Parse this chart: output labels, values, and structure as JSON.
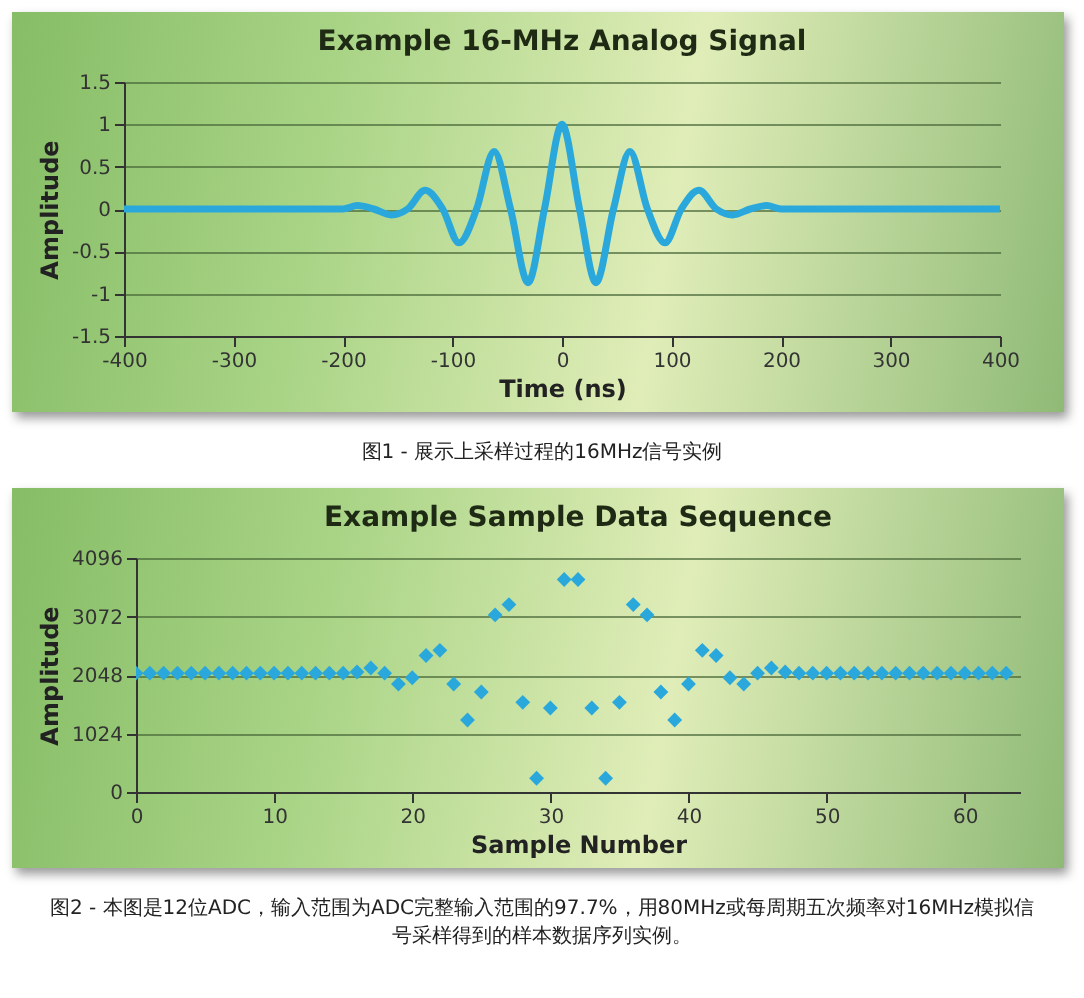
{
  "chart_data": [
    {
      "type": "line",
      "title": "Example 16-MHz Analog Signal",
      "xlabel": "Time (ns)",
      "ylabel": "Amplitude",
      "annotations": [
        "图1 - 展示上采样过程的16MHz信号实例"
      ],
      "series": [
        {
          "color": "#2aa8dc",
          "x": [
            -400,
            -300,
            -200,
            -187,
            -172,
            -156,
            -141,
            -125,
            -109,
            -94,
            -78,
            -62,
            -47,
            -31,
            -16,
            0,
            16,
            31,
            47,
            62,
            78,
            94,
            109,
            125,
            141,
            156,
            172,
            187,
            200,
            300,
            400
          ],
          "values": [
            0,
            0,
            0,
            0.04,
            0,
            -0.07,
            0,
            0.22,
            0,
            -0.4,
            0,
            0.68,
            0,
            -0.87,
            0,
            1,
            0,
            -0.87,
            0,
            0.68,
            0,
            -0.4,
            0,
            0.22,
            0,
            -0.07,
            0,
            0.04,
            0,
            0,
            0
          ]
        }
      ],
      "xlim": [
        -400,
        400
      ],
      "xticks": [
        -400,
        -300,
        -200,
        -100,
        0,
        100,
        200,
        300,
        400
      ],
      "ylim": [
        -1.5,
        1.5
      ],
      "yticks": [
        -1.5,
        -1,
        -0.5,
        0,
        0.5,
        1,
        1.5
      ],
      "grid": "y"
    },
    {
      "type": "scatter",
      "title": "Example Sample Data Sequence",
      "xlabel": "Sample Number",
      "ylabel": "Amplitude",
      "annotations": [
        "图2 - 本图是12位ADC，输入范围为ADC完整输入范围的97.7%，用80MHz或每周期五次频率对16MHz模拟信号采样得到的样本数据序列实例。"
      ],
      "series": [
        {
          "color": "#2aa8dc",
          "x": [
            0,
            1,
            2,
            3,
            4,
            5,
            6,
            7,
            8,
            9,
            10,
            11,
            12,
            13,
            14,
            15,
            16,
            17,
            18,
            19,
            20,
            21,
            22,
            23,
            24,
            25,
            26,
            27,
            28,
            29,
            30,
            31,
            32,
            33,
            34,
            35,
            36,
            37,
            38,
            39,
            40,
            41,
            42,
            43,
            44,
            45,
            46,
            47,
            48,
            49,
            50,
            51,
            52,
            53,
            54,
            55,
            56,
            57,
            58,
            59,
            60,
            61,
            62,
            63
          ],
          "values": [
            2080,
            2080,
            2080,
            2080,
            2080,
            2080,
            2080,
            2080,
            2080,
            2080,
            2080,
            2080,
            2080,
            2080,
            2080,
            2080,
            2100,
            2170,
            2080,
            1890,
            2000,
            2390,
            2480,
            1890,
            1260,
            1750,
            3100,
            3280,
            1570,
            240,
            1470,
            3720,
            3720,
            1470,
            240,
            1570,
            3280,
            3100,
            1750,
            1260,
            1890,
            2480,
            2390,
            2000,
            1890,
            2080,
            2170,
            2100,
            2080,
            2080,
            2080,
            2080,
            2080,
            2080,
            2080,
            2080,
            2080,
            2080,
            2080,
            2080,
            2080,
            2080,
            2080,
            2080
          ]
        }
      ],
      "marker": "diamond",
      "xlim": [
        0,
        64
      ],
      "xticks": [
        0,
        10,
        20,
        30,
        40,
        50,
        60
      ],
      "ylim": [
        0,
        4096
      ],
      "yticks": [
        0,
        1024,
        2048,
        3072,
        4096
      ],
      "grid": "y"
    }
  ]
}
